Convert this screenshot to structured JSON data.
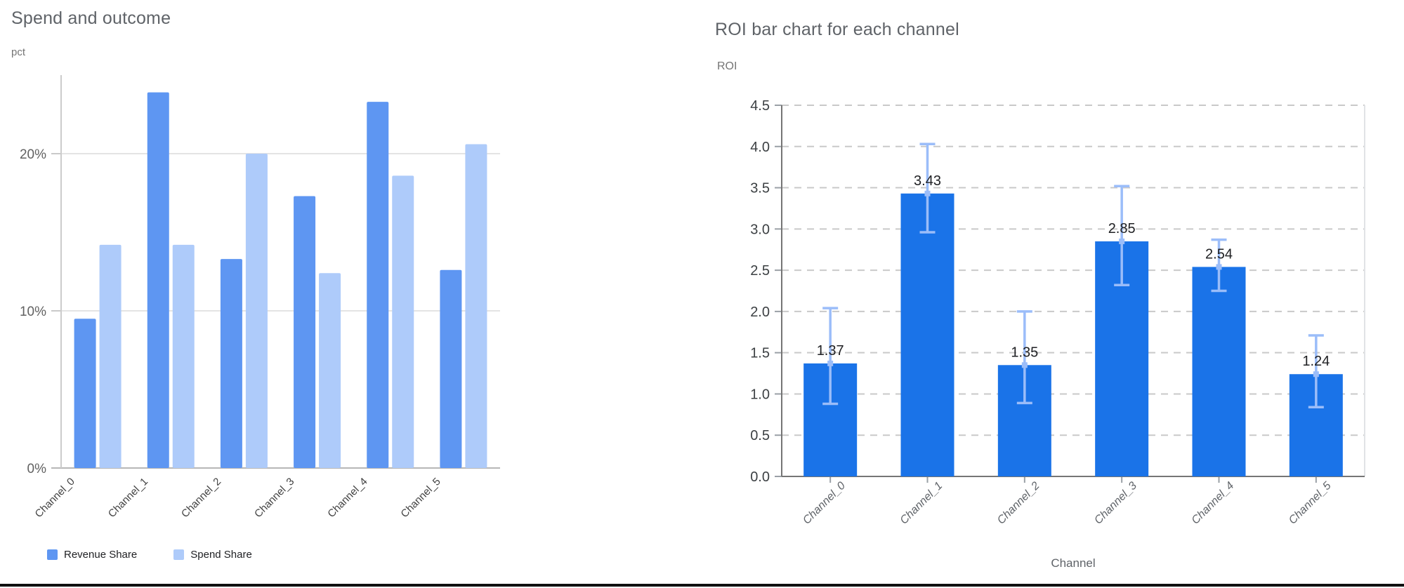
{
  "page": {
    "background": "#ffffff",
    "bottom_rule_color": "#101010"
  },
  "chart_data": [
    {
      "type": "bar",
      "title": "Spend and outcome",
      "ylabel": "pct",
      "xlabel": "",
      "categories": [
        "Channel_0",
        "Channel_1",
        "Channel_2",
        "Channel_3",
        "Channel_4",
        "Channel_5"
      ],
      "series": [
        {
          "name": "Revenue Share",
          "color": "#5e96f2",
          "values": [
            9.5,
            23.9,
            13.3,
            17.3,
            23.3,
            12.6
          ]
        },
        {
          "name": "Spend Share",
          "color": "#aecbfa",
          "values": [
            14.2,
            14.2,
            20.0,
            12.4,
            18.6,
            20.6
          ]
        }
      ],
      "ylim": [
        0,
        25
      ],
      "y_ticks": [
        {
          "value": 0,
          "label": "0%"
        },
        {
          "value": 10,
          "label": "10%"
        },
        {
          "value": 20,
          "label": "20%"
        }
      ],
      "grid": "horizontal-solid",
      "legend_position": "bottom"
    },
    {
      "type": "bar",
      "title": "ROI bar chart for each channel",
      "ylabel": "ROI",
      "xlabel": "Channel",
      "categories": [
        "Channel_0",
        "Channel_1",
        "Channel_2",
        "Channel_3",
        "Channel_4",
        "Channel_5"
      ],
      "values": [
        1.37,
        3.43,
        1.35,
        2.85,
        2.54,
        1.24
      ],
      "bar_labels": [
        "1.37",
        "3.43",
        "1.35",
        "2.85",
        "2.54",
        "1.24"
      ],
      "error_low": [
        0.88,
        2.96,
        0.89,
        2.32,
        2.25,
        0.84
      ],
      "error_high": [
        2.04,
        4.03,
        2.0,
        3.52,
        2.87,
        1.71
      ],
      "bar_color": "#1a73e8",
      "error_color": "#9bbdf9",
      "ylim": [
        0,
        4.5
      ],
      "y_tick_step": 0.5,
      "grid": "horizontal-dashed",
      "legend_position": "none"
    }
  ]
}
